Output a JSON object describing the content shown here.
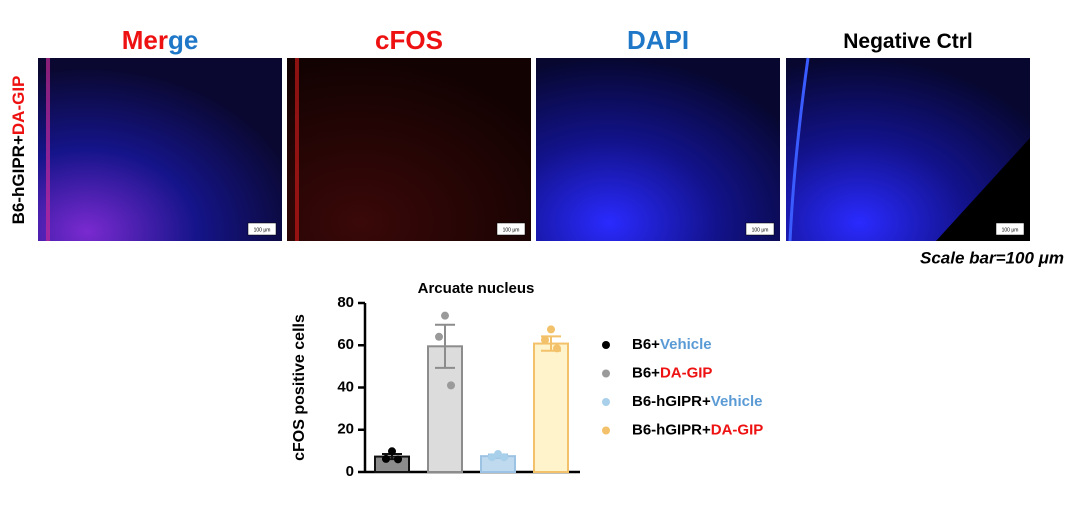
{
  "panels": {
    "titles": [
      {
        "parts": [
          {
            "text": "Mer",
            "color": "#ee1111"
          },
          {
            "text": "ge",
            "color": "#1f77c8"
          }
        ]
      },
      {
        "parts": [
          {
            "text": "cFOS",
            "color": "#ee1111"
          }
        ]
      },
      {
        "parts": [
          {
            "text": "DAPI",
            "color": "#1f77c8"
          }
        ]
      },
      {
        "parts": [
          {
            "text": "Negative Ctrl",
            "color": "#000000"
          }
        ]
      }
    ],
    "row_label": [
      {
        "text": "B6-hGIPR+",
        "color": "#000000"
      },
      {
        "text": "DA-GIP",
        "color": "#ee1111"
      }
    ],
    "scale_label": "100 μm",
    "scale_note": "Scale bar=100 μm"
  },
  "chart_data": {
    "type": "bar",
    "title": "Arcuate nucleus",
    "y_label": "cFOS positive cells",
    "ylim": [
      0,
      80
    ],
    "yticks": [
      0,
      20,
      40,
      60,
      80
    ],
    "series": [
      {
        "name_parts": [
          {
            "text": "B6+",
            "color": "#000000"
          },
          {
            "text": "Vehicle",
            "color": "#5b9bd5"
          }
        ],
        "color": "#000000",
        "fill": "#8c8c8c",
        "edge": "#111111",
        "values": [
          7.3
        ],
        "errors": [
          1.2
        ],
        "points": [
          9.8,
          6.2,
          6.0
        ]
      },
      {
        "name_parts": [
          {
            "text": "B6+",
            "color": "#000000"
          },
          {
            "text": "DA-GIP",
            "color": "#ee1111"
          }
        ],
        "color": "#9a9a9a",
        "fill": "#dcdcdc",
        "edge": "#8c8c8c",
        "values": [
          59.5
        ],
        "errors": [
          10.2
        ],
        "points": [
          74,
          64,
          41
        ]
      },
      {
        "name_parts": [
          {
            "text": "B6-hGIPR+",
            "color": "#000000"
          },
          {
            "text": "Vehicle",
            "color": "#5b9bd5"
          }
        ],
        "color": "#a9d0ea",
        "fill": "#bfd9ee",
        "edge": "#9cc3e4",
        "values": [
          7.5
        ],
        "errors": [
          0.8
        ],
        "points": [
          8.5,
          7.0,
          7.0
        ]
      },
      {
        "name_parts": [
          {
            "text": "B6-hGIPR+",
            "color": "#000000"
          },
          {
            "text": "DA-GIP",
            "color": "#ee1111"
          }
        ],
        "color": "#f2c16a",
        "fill": "#fff3cc",
        "edge": "#f2c16a",
        "values": [
          60.8
        ],
        "errors": [
          3.4
        ],
        "points": [
          67.5,
          62.5,
          58.5
        ]
      }
    ]
  }
}
